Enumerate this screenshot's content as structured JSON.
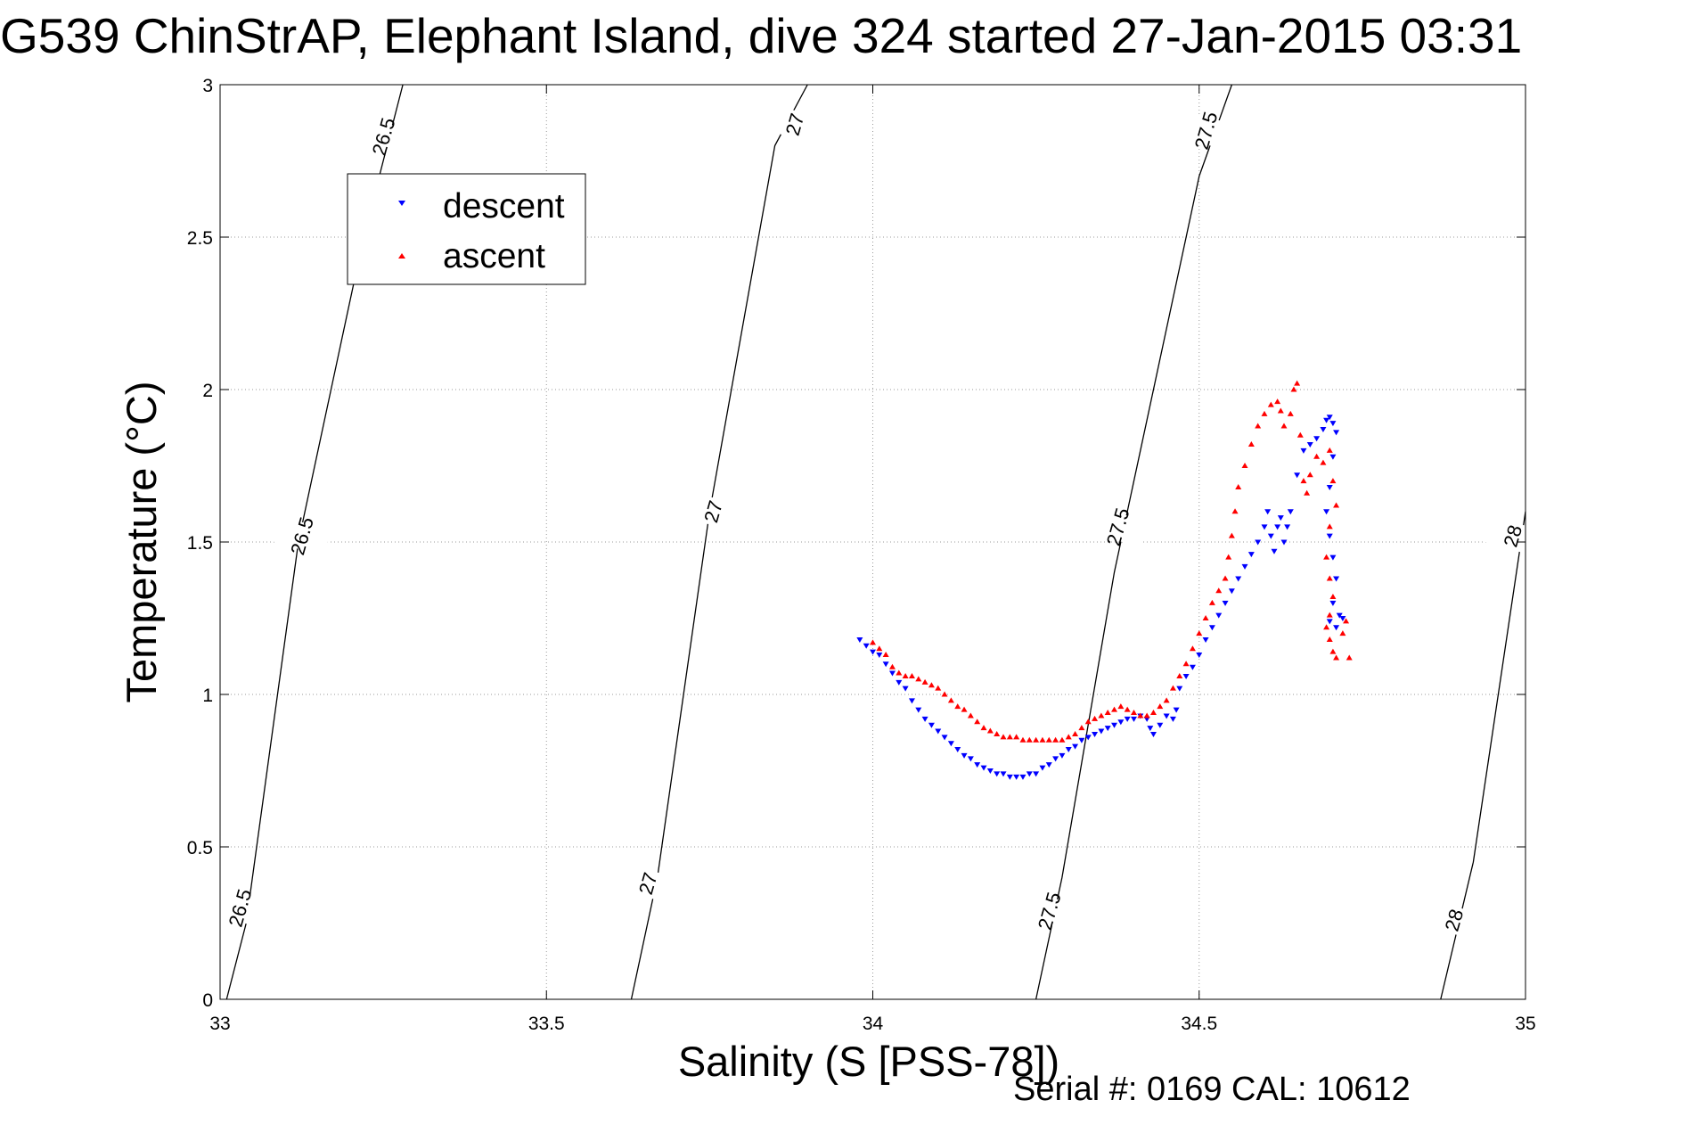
{
  "chart_data": {
    "type": "scatter",
    "title": "G539 ChinStrAP, Elephant Island, dive 324 started 27-Jan-2015 03:31",
    "xlabel": "Salinity (S [PSS-78])",
    "ylabel": "Temperature (°C)",
    "xlim": [
      33,
      35
    ],
    "ylim": [
      0,
      3
    ],
    "xticks": [
      33,
      33.5,
      34,
      34.5,
      35
    ],
    "yticks": [
      0,
      0.5,
      1,
      1.5,
      2,
      2.5,
      3
    ],
    "xtick_labels": [
      "33",
      "33.5",
      "34",
      "34.5",
      "35"
    ],
    "ytick_labels": [
      "0",
      "0.5",
      "1",
      "1.5",
      "2",
      "2.5",
      "3"
    ],
    "grid": true,
    "legend_position": "top-left",
    "density_contours": [
      {
        "level": "26.5",
        "points": [
          [
            33.01,
            0
          ],
          [
            33.04,
            0.25
          ],
          [
            33.12,
            1.5
          ],
          [
            33.22,
            2.5
          ],
          [
            33.28,
            3.0
          ]
        ],
        "label_positions": [
          [
            33.03,
            0.3
          ],
          [
            33.125,
            1.52
          ],
          [
            33.25,
            2.83
          ]
        ]
      },
      {
        "level": "27",
        "points": [
          [
            33.63,
            0
          ],
          [
            33.67,
            0.4
          ],
          [
            33.75,
            1.6
          ],
          [
            33.85,
            2.8
          ],
          [
            33.9,
            3.0
          ]
        ],
        "label_positions": [
          [
            33.655,
            0.38
          ],
          [
            33.755,
            1.6
          ],
          [
            33.88,
            2.87
          ]
        ]
      },
      {
        "level": "27.5",
        "points": [
          [
            34.25,
            0
          ],
          [
            34.29,
            0.4
          ],
          [
            34.37,
            1.4
          ],
          [
            34.5,
            2.7
          ],
          [
            34.55,
            3.0
          ]
        ],
        "label_positions": [
          [
            34.27,
            0.29
          ],
          [
            34.375,
            1.55
          ],
          [
            34.51,
            2.85
          ]
        ]
      },
      {
        "level": "28",
        "points": [
          [
            34.87,
            0
          ],
          [
            34.92,
            0.45
          ],
          [
            35.0,
            1.6
          ]
        ],
        "label_positions": [
          [
            34.89,
            0.26
          ],
          [
            34.98,
            1.52
          ]
        ]
      }
    ],
    "series": [
      {
        "name": "descent",
        "color": "#0000ff",
        "marker": "triangle-down",
        "points": [
          [
            33.98,
            1.18
          ],
          [
            33.99,
            1.16
          ],
          [
            34.0,
            1.14
          ],
          [
            34.01,
            1.13
          ],
          [
            34.02,
            1.1
          ],
          [
            34.03,
            1.07
          ],
          [
            34.04,
            1.04
          ],
          [
            34.05,
            1.02
          ],
          [
            34.06,
            0.98
          ],
          [
            34.07,
            0.95
          ],
          [
            34.08,
            0.92
          ],
          [
            34.09,
            0.9
          ],
          [
            34.1,
            0.88
          ],
          [
            34.11,
            0.86
          ],
          [
            34.12,
            0.84
          ],
          [
            34.13,
            0.82
          ],
          [
            34.14,
            0.8
          ],
          [
            34.15,
            0.79
          ],
          [
            34.16,
            0.77
          ],
          [
            34.17,
            0.76
          ],
          [
            34.18,
            0.75
          ],
          [
            34.19,
            0.74
          ],
          [
            34.2,
            0.74
          ],
          [
            34.21,
            0.73
          ],
          [
            34.22,
            0.73
          ],
          [
            34.23,
            0.73
          ],
          [
            34.24,
            0.74
          ],
          [
            34.25,
            0.74
          ],
          [
            34.26,
            0.76
          ],
          [
            34.27,
            0.77
          ],
          [
            34.28,
            0.79
          ],
          [
            34.29,
            0.8
          ],
          [
            34.3,
            0.82
          ],
          [
            34.31,
            0.83
          ],
          [
            34.32,
            0.85
          ],
          [
            34.33,
            0.86
          ],
          [
            34.34,
            0.87
          ],
          [
            34.35,
            0.88
          ],
          [
            34.36,
            0.89
          ],
          [
            34.37,
            0.9
          ],
          [
            34.38,
            0.91
          ],
          [
            34.39,
            0.92
          ],
          [
            34.4,
            0.92
          ],
          [
            34.41,
            0.93
          ],
          [
            34.42,
            0.92
          ],
          [
            34.425,
            0.89
          ],
          [
            34.43,
            0.87
          ],
          [
            34.44,
            0.9
          ],
          [
            34.45,
            0.93
          ],
          [
            34.46,
            0.92
          ],
          [
            34.465,
            0.95
          ],
          [
            34.47,
            1.02
          ],
          [
            34.48,
            1.06
          ],
          [
            34.49,
            1.09
          ],
          [
            34.5,
            1.13
          ],
          [
            34.51,
            1.18
          ],
          [
            34.52,
            1.22
          ],
          [
            34.53,
            1.26
          ],
          [
            34.54,
            1.3
          ],
          [
            34.55,
            1.34
          ],
          [
            34.56,
            1.38
          ],
          [
            34.57,
            1.42
          ],
          [
            34.58,
            1.46
          ],
          [
            34.59,
            1.5
          ],
          [
            34.6,
            1.55
          ],
          [
            34.605,
            1.6
          ],
          [
            34.61,
            1.52
          ],
          [
            34.615,
            1.47
          ],
          [
            34.62,
            1.55
          ],
          [
            34.625,
            1.58
          ],
          [
            34.63,
            1.5
          ],
          [
            34.635,
            1.55
          ],
          [
            34.64,
            1.6
          ],
          [
            34.65,
            1.72
          ],
          [
            34.66,
            1.8
          ],
          [
            34.67,
            1.82
          ],
          [
            34.68,
            1.84
          ],
          [
            34.69,
            1.87
          ],
          [
            34.695,
            1.9
          ],
          [
            34.7,
            1.91
          ],
          [
            34.705,
            1.89
          ],
          [
            34.71,
            1.86
          ],
          [
            34.705,
            1.78
          ],
          [
            34.7,
            1.68
          ],
          [
            34.695,
            1.6
          ],
          [
            34.7,
            1.52
          ],
          [
            34.705,
            1.45
          ],
          [
            34.71,
            1.38
          ],
          [
            34.705,
            1.3
          ],
          [
            34.7,
            1.24
          ],
          [
            34.71,
            1.22
          ],
          [
            34.715,
            1.26
          ],
          [
            34.72,
            1.25
          ]
        ]
      },
      {
        "name": "ascent",
        "color": "#ff0000",
        "marker": "triangle-up",
        "points": [
          [
            34.0,
            1.17
          ],
          [
            34.01,
            1.15
          ],
          [
            34.02,
            1.13
          ],
          [
            34.03,
            1.09
          ],
          [
            34.04,
            1.07
          ],
          [
            34.05,
            1.06
          ],
          [
            34.06,
            1.06
          ],
          [
            34.07,
            1.05
          ],
          [
            34.08,
            1.04
          ],
          [
            34.09,
            1.03
          ],
          [
            34.1,
            1.02
          ],
          [
            34.11,
            1.0
          ],
          [
            34.12,
            0.98
          ],
          [
            34.13,
            0.96
          ],
          [
            34.14,
            0.95
          ],
          [
            34.15,
            0.93
          ],
          [
            34.16,
            0.91
          ],
          [
            34.17,
            0.89
          ],
          [
            34.18,
            0.88
          ],
          [
            34.19,
            0.87
          ],
          [
            34.2,
            0.86
          ],
          [
            34.21,
            0.86
          ],
          [
            34.22,
            0.86
          ],
          [
            34.23,
            0.85
          ],
          [
            34.24,
            0.85
          ],
          [
            34.25,
            0.85
          ],
          [
            34.26,
            0.85
          ],
          [
            34.27,
            0.85
          ],
          [
            34.28,
            0.85
          ],
          [
            34.29,
            0.85
          ],
          [
            34.3,
            0.86
          ],
          [
            34.31,
            0.87
          ],
          [
            34.32,
            0.89
          ],
          [
            34.33,
            0.91
          ],
          [
            34.34,
            0.92
          ],
          [
            34.35,
            0.93
          ],
          [
            34.36,
            0.94
          ],
          [
            34.37,
            0.95
          ],
          [
            34.38,
            0.96
          ],
          [
            34.39,
            0.95
          ],
          [
            34.4,
            0.94
          ],
          [
            34.41,
            0.93
          ],
          [
            34.42,
            0.93
          ],
          [
            34.43,
            0.94
          ],
          [
            34.44,
            0.96
          ],
          [
            34.45,
            0.98
          ],
          [
            34.46,
            1.02
          ],
          [
            34.47,
            1.06
          ],
          [
            34.48,
            1.1
          ],
          [
            34.49,
            1.15
          ],
          [
            34.5,
            1.2
          ],
          [
            34.51,
            1.25
          ],
          [
            34.52,
            1.3
          ],
          [
            34.53,
            1.34
          ],
          [
            34.54,
            1.38
          ],
          [
            34.545,
            1.45
          ],
          [
            34.55,
            1.52
          ],
          [
            34.555,
            1.6
          ],
          [
            34.56,
            1.68
          ],
          [
            34.57,
            1.75
          ],
          [
            34.58,
            1.82
          ],
          [
            34.59,
            1.88
          ],
          [
            34.6,
            1.92
          ],
          [
            34.61,
            1.95
          ],
          [
            34.62,
            1.96
          ],
          [
            34.625,
            1.93
          ],
          [
            34.63,
            1.88
          ],
          [
            34.64,
            1.92
          ],
          [
            34.645,
            2.0
          ],
          [
            34.65,
            2.02
          ],
          [
            34.655,
            1.85
          ],
          [
            34.66,
            1.7
          ],
          [
            34.665,
            1.66
          ],
          [
            34.67,
            1.72
          ],
          [
            34.68,
            1.78
          ],
          [
            34.69,
            1.76
          ],
          [
            34.7,
            1.8
          ],
          [
            34.705,
            1.7
          ],
          [
            34.71,
            1.62
          ],
          [
            34.7,
            1.55
          ],
          [
            34.695,
            1.45
          ],
          [
            34.7,
            1.38
          ],
          [
            34.705,
            1.32
          ],
          [
            34.7,
            1.26
          ],
          [
            34.695,
            1.22
          ],
          [
            34.7,
            1.18
          ],
          [
            34.705,
            1.14
          ],
          [
            34.71,
            1.12
          ],
          [
            34.72,
            1.2
          ],
          [
            34.725,
            1.24
          ],
          [
            34.73,
            1.12
          ]
        ]
      }
    ]
  },
  "footer": {
    "serial_text": "Serial #: 0169 CAL: 10612"
  }
}
